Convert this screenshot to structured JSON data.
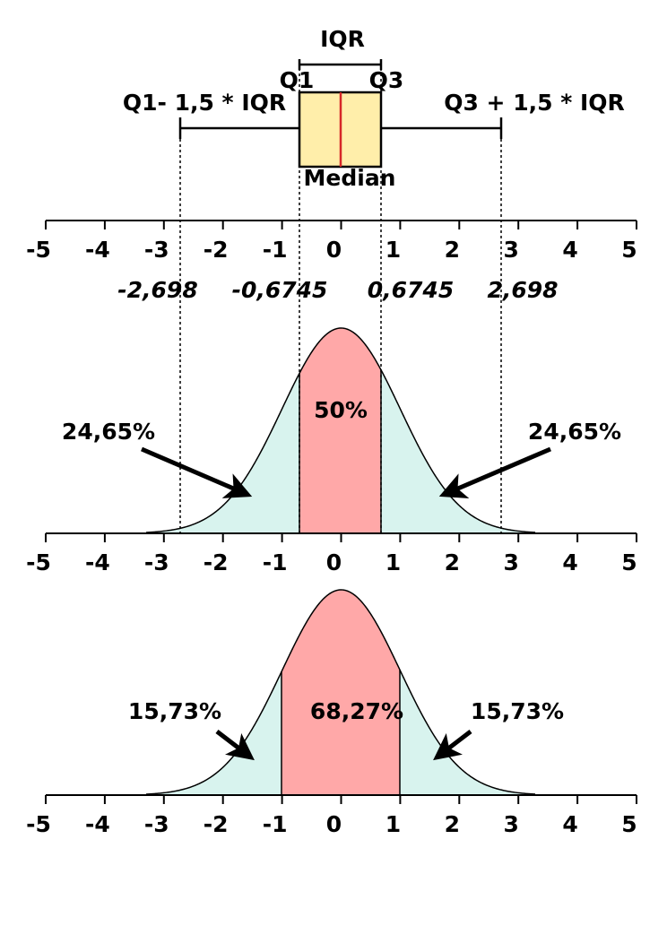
{
  "boxplot": {
    "iqr": "IQR",
    "q1": "Q1",
    "q3": "Q3",
    "lower_fence": "Q1- 1,5 * IQR",
    "upper_fence": "Q3 + 1,5 * IQR",
    "median": "Median"
  },
  "axis_ticks": [
    "-5",
    "-4",
    "-3",
    "-2",
    "-1",
    "0",
    "1",
    "2",
    "3",
    "4",
    "5"
  ],
  "quantile_labels": [
    "-2,698",
    "-0,6745",
    "0,6745",
    "2,698"
  ],
  "distribution_1": {
    "left": "24,65%",
    "center": "50%",
    "right": "24,65%"
  },
  "distribution_2": {
    "left": "15,73%",
    "center": "68,27%",
    "right": "15,73%"
  }
}
